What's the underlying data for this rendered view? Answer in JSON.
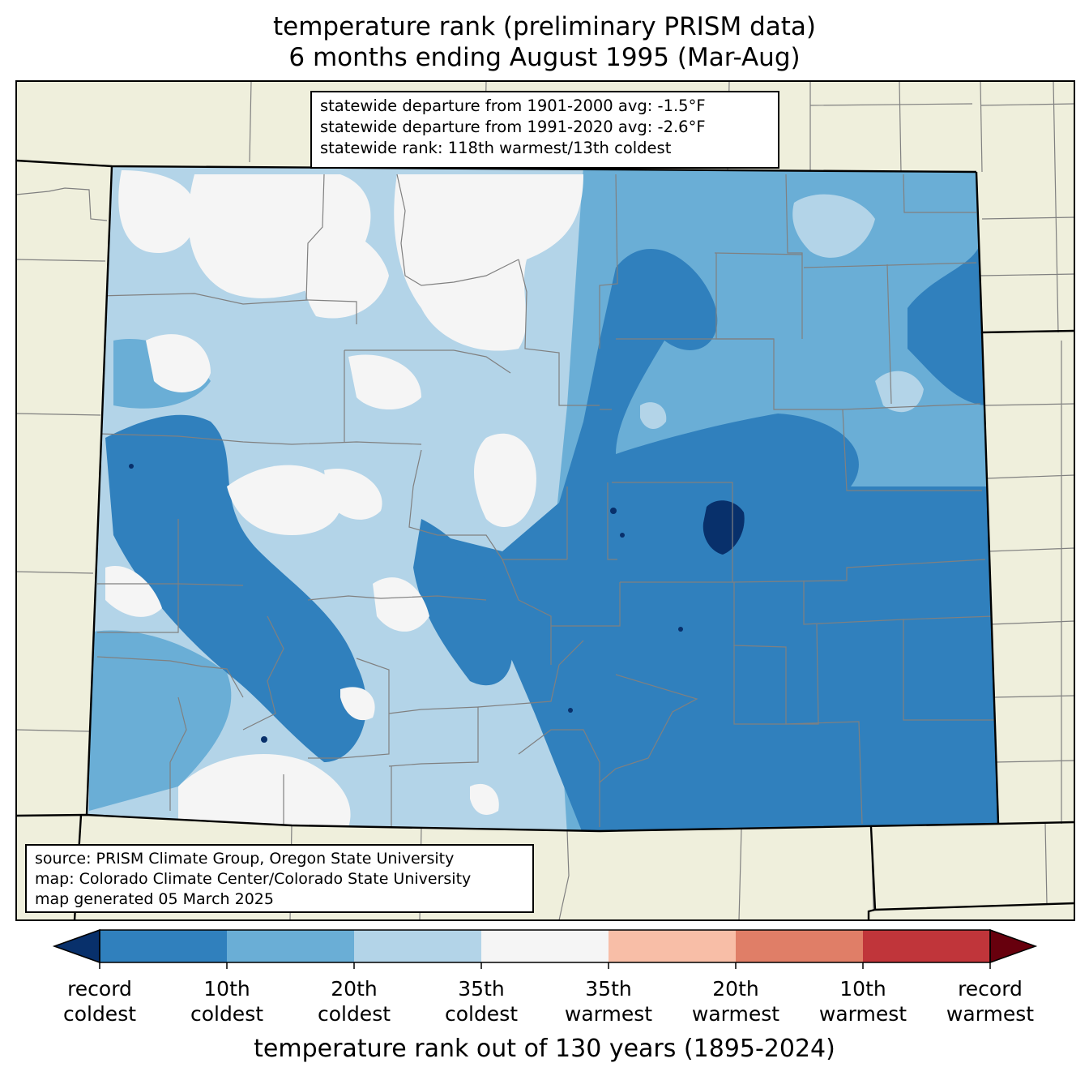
{
  "title": {
    "line1": "temperature rank (preliminary PRISM data)",
    "line2": "6 months ending August 1995 (Mar-Aug)"
  },
  "stats": {
    "line1": "statewide departure from 1901-2000 avg: -1.5°F",
    "line2": "statewide departure from 1991-2020 avg: -2.6°F",
    "line3": "statewide rank: 118th warmest/13th coldest"
  },
  "source": {
    "line1": "source: PRISM Climate Group, Oregon State University",
    "line2": "map: Colorado Climate Center/Colorado State University",
    "line3": "map generated 05 March 2025"
  },
  "colorbar": {
    "extend_low_color": "#08306b",
    "extend_high_color": "#67000d",
    "bins": [
      {
        "color": "#3080bd"
      },
      {
        "color": "#6aaed6"
      },
      {
        "color": "#b3d4e8"
      },
      {
        "color": "#f5f5f5"
      },
      {
        "color": "#f8bea7"
      },
      {
        "color": "#e07e67"
      },
      {
        "color": "#c0353a"
      }
    ],
    "ticks": [
      {
        "line1": "record",
        "line2": "coldest"
      },
      {
        "line1": "10th",
        "line2": "coldest"
      },
      {
        "line1": "20th",
        "line2": "coldest"
      },
      {
        "line1": "35th",
        "line2": "coldest"
      },
      {
        "line1": "35th",
        "line2": "warmest"
      },
      {
        "line1": "20th",
        "line2": "warmest"
      },
      {
        "line1": "10th",
        "line2": "warmest"
      },
      {
        "line1": "record",
        "line2": "warmest"
      }
    ],
    "xlabel": "temperature rank out of 130 years (1895-2024)"
  },
  "map_colors": {
    "land": "#efefdc",
    "record_coldest": "#08306b",
    "coldest_10": "#3080bd",
    "coldest_20": "#6aaed6",
    "coldest_35": "#b3d4e8",
    "near_normal": "#f5f5f5",
    "county_lines": "#808080",
    "state_lines": "#000000"
  }
}
